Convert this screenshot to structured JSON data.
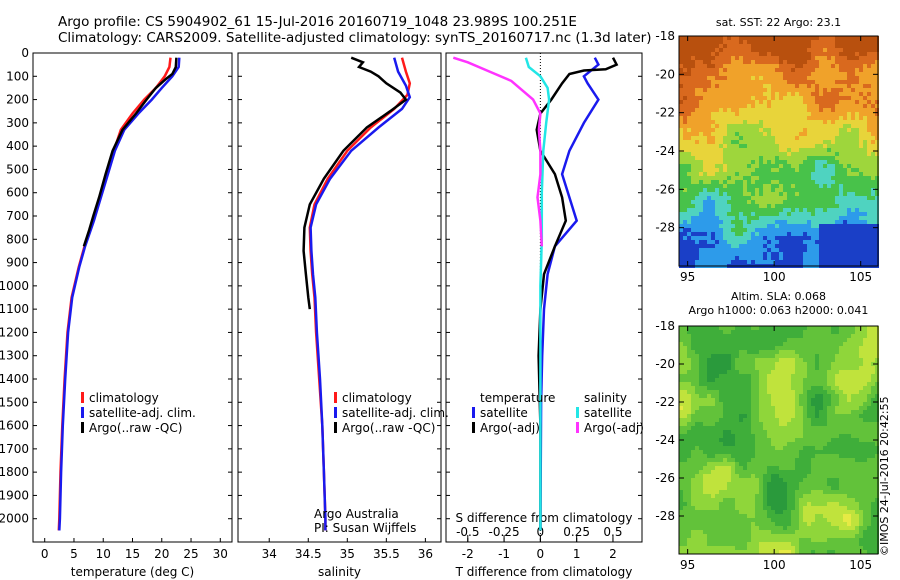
{
  "title_line1": "Argo profile: CS 5904902_61 15-Jul-2016 20160719_1048 23.989S 100.251E",
  "title_line2": "Climatology: CARS2009. Satellite-adjusted climatology: synTS_20160717.nc (1.3d later)",
  "side_label": "©IMOS 24-Jul-2016 20:42:55",
  "colors": {
    "climatology": "#ff1a1a",
    "satellite": "#1a1aee",
    "argo": "#000000",
    "sat_salinity": "#22e6e6",
    "argo_salinity": "#ff33ff"
  },
  "depth_axis": {
    "range": [
      0,
      2100
    ],
    "ticks": [
      0,
      100,
      200,
      300,
      400,
      500,
      600,
      700,
      800,
      900,
      1000,
      1100,
      1200,
      1300,
      1400,
      1500,
      1600,
      1700,
      1800,
      1900,
      2000
    ]
  },
  "chart_data": [
    {
      "type": "line",
      "xlabel": "temperature (deg C)",
      "xlim": [
        -2,
        32
      ],
      "xticks": [
        0,
        5,
        10,
        15,
        20,
        25,
        30
      ],
      "legend": [
        "climatology",
        "satellite-adj. clim.",
        "Argo(..raw -QC)"
      ],
      "series": [
        {
          "name": "climatology",
          "points": [
            [
              21.5,
              20
            ],
            [
              21.3,
              60
            ],
            [
              20.5,
              100
            ],
            [
              19,
              150
            ],
            [
              17,
              200
            ],
            [
              15,
              260
            ],
            [
              13,
              330
            ],
            [
              11.8,
              420
            ],
            [
              10.6,
              520
            ],
            [
              9.4,
              620
            ],
            [
              8.2,
              720
            ],
            [
              6.8,
              830
            ],
            [
              5.8,
              920
            ],
            [
              4.6,
              1050
            ],
            [
              3.9,
              1200
            ],
            [
              3.4,
              1400
            ],
            [
              3.0,
              1600
            ],
            [
              2.7,
              1800
            ],
            [
              2.5,
              2000
            ],
            [
              2.4,
              2050
            ]
          ]
        },
        {
          "name": "satellite-adj. clim.",
          "points": [
            [
              23.0,
              20
            ],
            [
              22.9,
              60
            ],
            [
              21.8,
              100
            ],
            [
              20,
              150
            ],
            [
              18.3,
              200
            ],
            [
              16,
              260
            ],
            [
              13.6,
              330
            ],
            [
              12,
              420
            ],
            [
              10.8,
              520
            ],
            [
              9.6,
              620
            ],
            [
              8.4,
              720
            ],
            [
              6.9,
              830
            ],
            [
              5.9,
              920
            ],
            [
              4.7,
              1050
            ],
            [
              4.0,
              1200
            ],
            [
              3.5,
              1400
            ],
            [
              3.1,
              1600
            ],
            [
              2.8,
              1800
            ],
            [
              2.6,
              2000
            ],
            [
              2.5,
              2050
            ]
          ]
        },
        {
          "name": "Argo(..raw -QC)",
          "points": [
            [
              22.5,
              20
            ],
            [
              22.4,
              60
            ],
            [
              21.8,
              90
            ],
            [
              20.8,
              110
            ],
            [
              19,
              150
            ],
            [
              17.4,
              200
            ],
            [
              15.6,
              260
            ],
            [
              13.3,
              330
            ],
            [
              11.6,
              420
            ],
            [
              10.4,
              520
            ],
            [
              9.3,
              620
            ],
            [
              8.3,
              700
            ],
            [
              7.6,
              760
            ],
            [
              6.7,
              830
            ]
          ]
        }
      ]
    },
    {
      "type": "line",
      "xlabel": "salinity",
      "xlim": [
        33.6,
        36.2
      ],
      "xticks": [
        34,
        34.5,
        35,
        35.5,
        36
      ],
      "legend": [
        "climatology",
        "satellite-adj. clim.",
        "Argo(..raw -QC)"
      ],
      "annotation_lines": [
        "Argo Australia",
        "PI: Susan Wijffels"
      ],
      "series": [
        {
          "name": "climatology",
          "points": [
            [
              35.7,
              20
            ],
            [
              35.75,
              80
            ],
            [
              35.8,
              130
            ],
            [
              35.77,
              180
            ],
            [
              35.6,
              240
            ],
            [
              35.3,
              320
            ],
            [
              35.0,
              420
            ],
            [
              34.75,
              540
            ],
            [
              34.58,
              650
            ],
            [
              34.52,
              750
            ],
            [
              34.53,
              850
            ],
            [
              34.55,
              950
            ],
            [
              34.58,
              1050
            ],
            [
              34.6,
              1200
            ],
            [
              34.64,
              1400
            ],
            [
              34.68,
              1600
            ],
            [
              34.7,
              1800
            ],
            [
              34.72,
              2000
            ],
            [
              34.72,
              2050
            ]
          ]
        },
        {
          "name": "satellite-adj. clim.",
          "points": [
            [
              35.6,
              20
            ],
            [
              35.65,
              80
            ],
            [
              35.75,
              140
            ],
            [
              35.8,
              190
            ],
            [
              35.7,
              240
            ],
            [
              35.4,
              320
            ],
            [
              35.05,
              420
            ],
            [
              34.78,
              540
            ],
            [
              34.6,
              650
            ],
            [
              34.53,
              750
            ],
            [
              34.54,
              850
            ],
            [
              34.56,
              950
            ],
            [
              34.59,
              1050
            ],
            [
              34.61,
              1200
            ],
            [
              34.65,
              1400
            ],
            [
              34.68,
              1600
            ],
            [
              34.7,
              1800
            ],
            [
              34.72,
              2000
            ],
            [
              34.72,
              2050
            ]
          ]
        },
        {
          "name": "Argo(..raw -QC)",
          "points": [
            [
              35.05,
              20
            ],
            [
              35.2,
              40
            ],
            [
              35.15,
              60
            ],
            [
              35.3,
              80
            ],
            [
              35.4,
              100
            ],
            [
              35.5,
              130
            ],
            [
              35.68,
              170
            ],
            [
              35.75,
              200
            ],
            [
              35.55,
              250
            ],
            [
              35.25,
              320
            ],
            [
              34.95,
              420
            ],
            [
              34.7,
              540
            ],
            [
              34.52,
              650
            ],
            [
              34.45,
              750
            ],
            [
              34.44,
              850
            ],
            [
              34.47,
              950
            ],
            [
              34.5,
              1050
            ],
            [
              34.52,
              1100
            ]
          ]
        }
      ]
    },
    {
      "type": "line",
      "xlim": [
        -2.6,
        2.8
      ],
      "xticks": [
        -2,
        -1,
        0,
        1,
        2
      ],
      "xlabel": "T difference from climatology",
      "top_axis_label": "S difference from climatology",
      "top_ticks": [
        {
          "value": -0.5,
          "label": "-0.5"
        },
        {
          "value": -0.25,
          "label": "-0.25"
        },
        {
          "value": 0,
          "label": "0"
        },
        {
          "value": 0.25,
          "label": "0.25"
        },
        {
          "value": 0.5,
          "label": "0.5"
        }
      ],
      "s_scale": 4,
      "legend_groups": [
        {
          "heading": "temperature",
          "items": [
            "satellite",
            "Argo(-adj)"
          ]
        },
        {
          "heading": "salinity",
          "items": [
            "satellite",
            "Argo(-adj)"
          ]
        }
      ],
      "series": [
        {
          "name": "temperature satellite",
          "quantity": "T",
          "points": [
            [
              1.5,
              20
            ],
            [
              1.6,
              50
            ],
            [
              1.2,
              100
            ],
            [
              1.3,
              130
            ],
            [
              1.6,
              200
            ],
            [
              1.2,
              300
            ],
            [
              0.8,
              420
            ],
            [
              0.6,
              520
            ],
            [
              0.8,
              620
            ],
            [
              1.0,
              720
            ],
            [
              0.4,
              830
            ],
            [
              0.2,
              950
            ],
            [
              0.1,
              1100
            ],
            [
              0.05,
              1300
            ],
            [
              0.02,
              1500
            ],
            [
              0,
              2050
            ]
          ]
        },
        {
          "name": "temperature Argo(-adj)",
          "quantity": "T",
          "points": [
            [
              2.0,
              20
            ],
            [
              2.1,
              50
            ],
            [
              1.8,
              70
            ],
            [
              1.2,
              75
            ],
            [
              0.8,
              90
            ],
            [
              0.6,
              130
            ],
            [
              0.3,
              200
            ],
            [
              0.0,
              260
            ],
            [
              -0.1,
              330
            ],
            [
              0.0,
              420
            ],
            [
              0.4,
              520
            ],
            [
              0.6,
              620
            ],
            [
              0.7,
              720
            ],
            [
              0.4,
              830
            ],
            [
              0.1,
              950
            ],
            [
              0,
              1100
            ],
            [
              -0.05,
              1300
            ],
            [
              0,
              1600
            ],
            [
              0,
              1900
            ],
            [
              0,
              2050
            ]
          ]
        },
        {
          "name": "salinity satellite",
          "quantity": "S",
          "points": [
            [
              -0.1,
              20
            ],
            [
              -0.08,
              60
            ],
            [
              0.0,
              100
            ],
            [
              0.05,
              150
            ],
            [
              0.06,
              200
            ],
            [
              0.04,
              300
            ],
            [
              0.02,
              420
            ],
            [
              0.01,
              600
            ],
            [
              0.01,
              800
            ],
            [
              0.0,
              1000
            ],
            [
              0.0,
              1200
            ],
            [
              0,
              2050
            ]
          ]
        },
        {
          "name": "salinity Argo(-adj)",
          "quantity": "S",
          "points": [
            [
              -0.6,
              20
            ],
            [
              -0.5,
              40
            ],
            [
              -0.35,
              80
            ],
            [
              -0.2,
              120
            ],
            [
              -0.05,
              200
            ],
            [
              0.0,
              260
            ],
            [
              -0.01,
              330
            ],
            [
              0.0,
              420
            ],
            [
              0.0,
              520
            ],
            [
              -0.02,
              620
            ],
            [
              0.0,
              720
            ],
            [
              0.01,
              830
            ]
          ]
        }
      ]
    },
    {
      "type": "heatmap",
      "title": "sat. SST: 22 Argo: 23.1",
      "xlim": [
        94.5,
        106
      ],
      "ylim": [
        -30,
        -18
      ],
      "xticks": [
        95,
        100,
        105
      ],
      "yticks": [
        -18,
        -20,
        -22,
        -24,
        -26,
        -28
      ],
      "colormap": [
        "#1a3fc7",
        "#2d9bea",
        "#4fd3c0",
        "#48c24a",
        "#9ed63c",
        "#e8d43a",
        "#f0a22a",
        "#d9691e",
        "#b8500e"
      ]
    },
    {
      "type": "heatmap",
      "title_lines": [
        "Altim. SLA: 0.068",
        "Argo h1000: 0.063 h2000: 0.041"
      ],
      "xlim": [
        94.5,
        106
      ],
      "ylim": [
        -30,
        -18
      ],
      "xticks": [
        95,
        100,
        105
      ],
      "yticks": [
        -18,
        -20,
        -22,
        -24,
        -26,
        -28
      ],
      "colormap": [
        "#2a9a3c",
        "#3fae3a",
        "#62c23a",
        "#8fd63a",
        "#c0e33c",
        "#e6ea44"
      ]
    }
  ]
}
